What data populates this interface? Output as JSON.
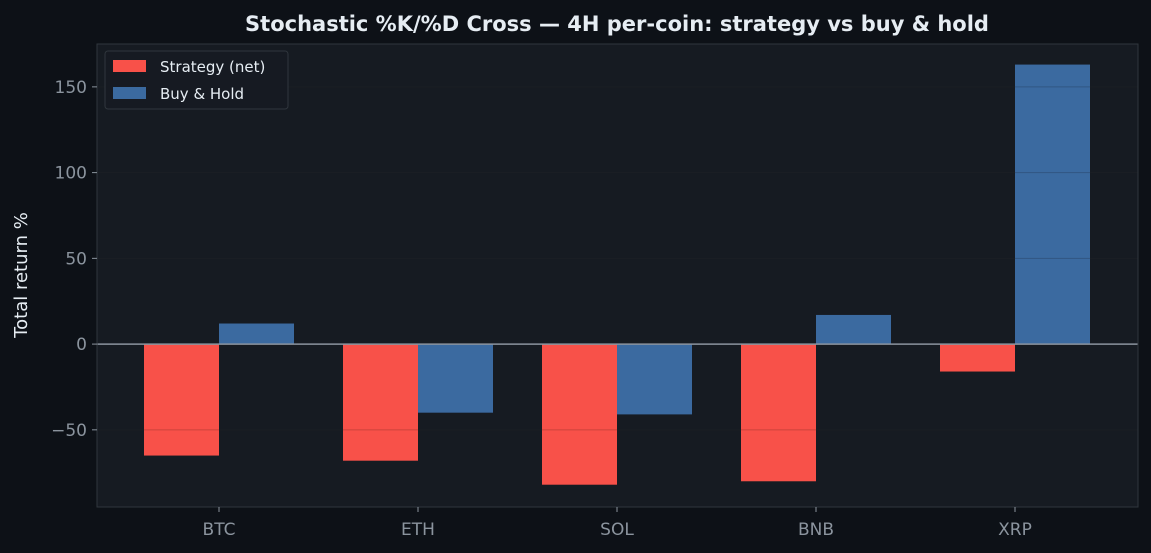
{
  "chart_data": {
    "type": "bar",
    "title": "Stochastic %K/%D Cross — 4H per-coin: strategy vs buy & hold",
    "xlabel": "",
    "ylabel": "Total return %",
    "categories": [
      "BTC",
      "ETH",
      "SOL",
      "BNB",
      "XRP"
    ],
    "series": [
      {
        "name": "Strategy (net)",
        "color": "#f85149",
        "values": [
          -65,
          -68,
          -82,
          -80,
          -16
        ]
      },
      {
        "name": "Buy & Hold",
        "color": "#3b6aa0",
        "values": [
          12,
          -40,
          -41,
          17,
          163
        ]
      }
    ],
    "ylim": [
      -95,
      175
    ],
    "yticks": [
      -50,
      0,
      50,
      100,
      150
    ],
    "grid": true,
    "legend_position": "top-left",
    "colors": {
      "background": "#0d1117",
      "plot_background": "#161b22",
      "text": "#e6edf3",
      "tick_text": "#8b949e",
      "zero_line": "#8b949e"
    }
  }
}
